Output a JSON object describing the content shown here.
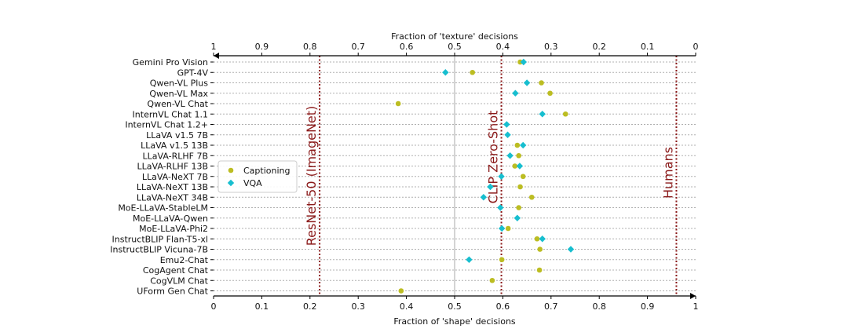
{
  "chart_data": {
    "type": "scatter",
    "xlabel": "Fraction of 'shape' decisions",
    "x2label": "Fraction of 'texture' decisions",
    "xlim": [
      0,
      1
    ],
    "x_ticks": [
      "0",
      "0.1",
      "0.2",
      "0.3",
      "0.4",
      "0.5",
      "0.6",
      "0.7",
      "0.8",
      "0.9",
      "1"
    ],
    "x2_ticks": [
      "1",
      "0.9",
      "0.8",
      "0.7",
      "0.6",
      "0.5",
      "0.4",
      "0.3",
      "0.2",
      "0.1",
      "0"
    ],
    "x2_reversed": true,
    "grid": "dotted horizontal row lines",
    "midline": 0.5,
    "categories": [
      "Gemini Pro Vision",
      "GPT-4V",
      "Qwen-VL Plus",
      "Qwen-VL Max",
      "Qwen-VL Chat",
      "InternVL Chat 1.1",
      "InternVL Chat 1.2+",
      "LLaVA v1.5 7B",
      "LLaVA v1.5 13B",
      "LLaVA-RLHF 7B",
      "LLaVA-RLHF 13B",
      "LLaVA-NeXT 7B",
      "LLaVA-NeXT 13B",
      "LLaVA-NeXT 34B",
      "MoE-LLaVA-StableLM",
      "MoE-LLaVA-Qwen",
      "MoE-LLaVA-Phi2",
      "InstructBLIP Flan-T5-xl",
      "InstructBLIP Vicuna-7B",
      "Emu2-Chat",
      "CogAgent Chat",
      "CogVLM Chat",
      "UForm Gen Chat"
    ],
    "legend_position": "left",
    "series": [
      {
        "name": "Captioning",
        "color": "#bcbd22",
        "marker": "circle",
        "values": [
          0.636,
          0.537,
          0.68,
          0.698,
          0.383,
          0.73,
          null,
          null,
          0.63,
          0.633,
          0.625,
          0.642,
          0.636,
          0.66,
          0.633,
          null,
          0.611,
          0.671,
          0.677,
          0.598,
          0.676,
          0.578,
          0.389
        ]
      },
      {
        "name": "VQA",
        "color": "#17becf",
        "marker": "diamond",
        "values": [
          0.643,
          0.481,
          0.65,
          0.626,
          null,
          0.682,
          0.608,
          0.61,
          0.642,
          0.615,
          0.635,
          0.597,
          0.574,
          0.56,
          0.595,
          0.63,
          0.598,
          0.682,
          0.741,
          0.53,
          null,
          null,
          null
        ]
      }
    ],
    "reference_lines": [
      {
        "label": "ResNet-50 (ImageNet)",
        "x": 0.22,
        "color": "#8b1a1a"
      },
      {
        "label": "CLIP Zero-Shot",
        "x": 0.597,
        "color": "#8b1a1a"
      },
      {
        "label": "Humans",
        "x": 0.96,
        "color": "#8b1a1a"
      }
    ]
  }
}
